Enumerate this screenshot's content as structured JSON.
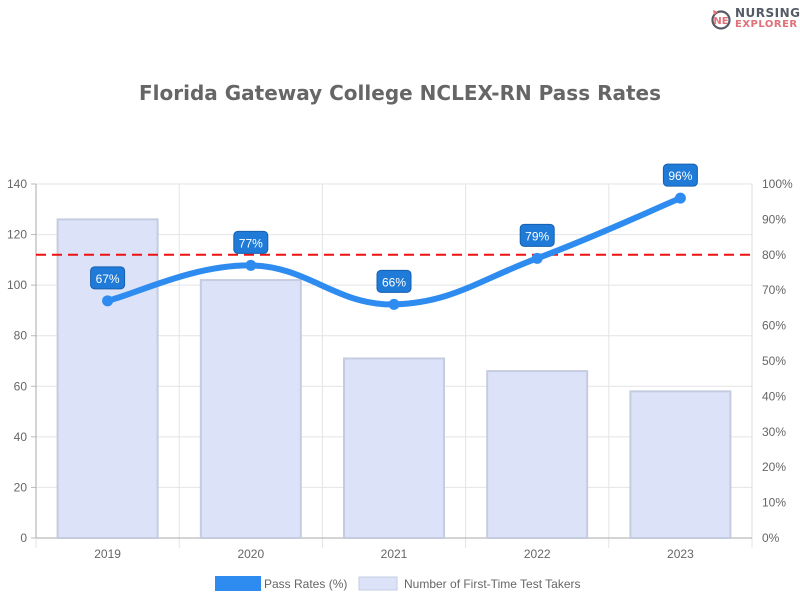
{
  "logo": {
    "line1": "NURSING",
    "line2": "EXPLORER"
  },
  "chart_data": {
    "type": "bar+line",
    "title": "Florida Gateway College NCLEX-RN Pass Rates",
    "categories": [
      "2019",
      "2020",
      "2021",
      "2022",
      "2023"
    ],
    "series": [
      {
        "name": "Pass Rates (%)",
        "type": "line",
        "axis": "right",
        "values": [
          67,
          77,
          66,
          79,
          96
        ],
        "color": "#2e8cf0"
      },
      {
        "name": "Number of First-Time Test Takers",
        "type": "bar",
        "axis": "left",
        "values": [
          126,
          102,
          71,
          66,
          58
        ],
        "color": "#dce3f8"
      }
    ],
    "reference_line": {
      "value": 80,
      "axis": "right",
      "color": "#ee1111",
      "style": "dashed"
    },
    "y_left": {
      "ylim": [
        0,
        140
      ],
      "ticks": [
        "0",
        "20",
        "40",
        "60",
        "80",
        "100",
        "120",
        "140"
      ]
    },
    "y_right": {
      "ylim": [
        0,
        100
      ],
      "ticks": [
        "0%",
        "10%",
        "20%",
        "30%",
        "40%",
        "50%",
        "60%",
        "70%",
        "80%",
        "90%",
        "100%"
      ]
    },
    "legend": "bottom",
    "grid": true
  }
}
